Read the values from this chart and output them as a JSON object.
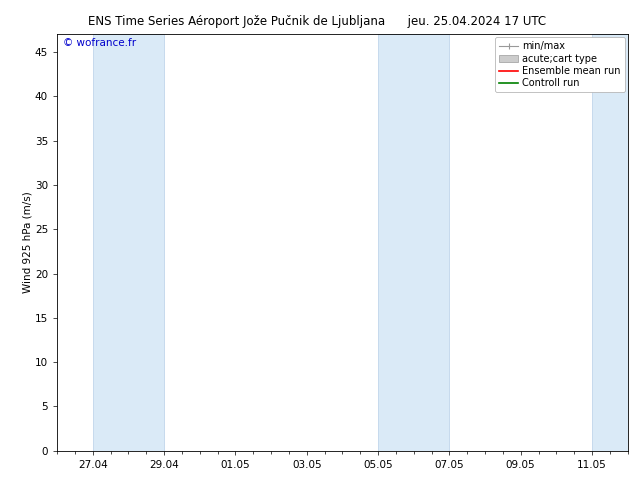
{
  "title_left": "ENS Time Series Aéroport Jože Pučnik de Ljubljana",
  "title_right": "jeu. 25.04.2024 17 UTC",
  "ylabel": "Wind 925 hPa (m/s)",
  "watermark": "© wofrance.fr",
  "ylim": [
    0,
    47
  ],
  "yticks": [
    0,
    5,
    10,
    15,
    20,
    25,
    30,
    35,
    40,
    45
  ],
  "x_min": 0.0,
  "x_max": 16.0,
  "x_tick_labels": [
    "27.04",
    "29.04",
    "01.05",
    "03.05",
    "05.05",
    "07.05",
    "09.05",
    "11.05"
  ],
  "x_tick_positions": [
    1.0,
    3.0,
    5.0,
    7.0,
    9.0,
    11.0,
    13.0,
    15.0
  ],
  "shaded_bands": [
    {
      "x_start": 1.0,
      "x_end": 3.0
    },
    {
      "x_start": 9.0,
      "x_end": 11.0
    },
    {
      "x_start": 15.0,
      "x_end": 16.0
    }
  ],
  "band_color": "#daeaf7",
  "band_edge_color": "#b8d0e8",
  "background_color": "#ffffff",
  "legend_entries": [
    {
      "label": "min/max",
      "color": "#999999",
      "lw": 1.2,
      "style": "errorbar"
    },
    {
      "label": "acute;cart type",
      "color": "#cccccc",
      "lw": 4,
      "style": "bar"
    },
    {
      "label": "Ensemble mean run",
      "color": "#ff0000",
      "lw": 1.2,
      "style": "line"
    },
    {
      "label": "Controll run",
      "color": "#008000",
      "lw": 1.2,
      "style": "line"
    }
  ],
  "title_fontsize": 8.5,
  "tick_fontsize": 7.5,
  "ylabel_fontsize": 7.5,
  "legend_fontsize": 7.0,
  "watermark_color": "#0000cc",
  "watermark_fontsize": 7.5
}
